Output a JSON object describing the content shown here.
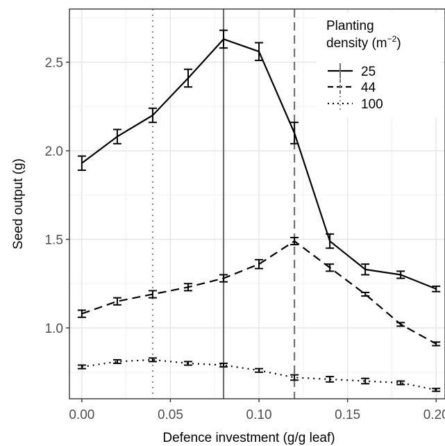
{
  "chart_data": {
    "type": "line",
    "title": "",
    "xlabel": "Defence investment (g/g leaf)",
    "ylabel": "Seed output (g)",
    "xlim": [
      -0.007,
      0.205
    ],
    "ylim": [
      0.6,
      2.8
    ],
    "x_ticks": [
      0.0,
      0.05,
      0.1,
      0.15,
      0.2
    ],
    "x_tick_labels": [
      "0.00",
      "0.05",
      "0.10",
      "0.15",
      "0.20"
    ],
    "y_ticks": [
      1.0,
      1.5,
      2.0,
      2.5
    ],
    "y_tick_labels": [
      "1.0",
      "1.5",
      "2.0",
      "2.5"
    ],
    "grid": true,
    "legend": {
      "title_line1": "Planting",
      "title_line2_prefix": "density (m",
      "title_superscript": "−2",
      "title_line2_suffix": ")",
      "position": "top-right"
    },
    "x": [
      0.0,
      0.02,
      0.04,
      0.06,
      0.08,
      0.1,
      0.12,
      0.14,
      0.16,
      0.18,
      0.2
    ],
    "series": [
      {
        "name": "25",
        "dash": "solid",
        "color": "#000000",
        "values": [
          1.93,
          2.08,
          2.2,
          2.41,
          2.63,
          2.56,
          2.1,
          1.49,
          1.33,
          1.3,
          1.22
        ],
        "errors": [
          0.04,
          0.04,
          0.04,
          0.05,
          0.05,
          0.05,
          0.06,
          0.04,
          0.03,
          0.02,
          0.015
        ],
        "vline": 0.08,
        "vline_color": "#707070"
      },
      {
        "name": "44",
        "dash": "dashed",
        "color": "#000000",
        "values": [
          1.08,
          1.15,
          1.19,
          1.23,
          1.28,
          1.36,
          1.49,
          1.34,
          1.19,
          1.02,
          0.91
        ],
        "errors": [
          0.02,
          0.02,
          0.02,
          0.02,
          0.02,
          0.025,
          0.02,
          0.02,
          0.01,
          0.01,
          0.01
        ],
        "vline": 0.12,
        "vline_color": "#707070"
      },
      {
        "name": "100",
        "dash": "dotted",
        "color": "#000000",
        "values": [
          0.78,
          0.81,
          0.82,
          0.8,
          0.79,
          0.76,
          0.72,
          0.71,
          0.7,
          0.69,
          0.65
        ],
        "errors": [
          0.01,
          0.01,
          0.01,
          0.01,
          0.01,
          0.01,
          0.015,
          0.015,
          0.015,
          0.01,
          0.008
        ],
        "vline": 0.04,
        "vline_color": "#8a8a8a"
      }
    ]
  }
}
